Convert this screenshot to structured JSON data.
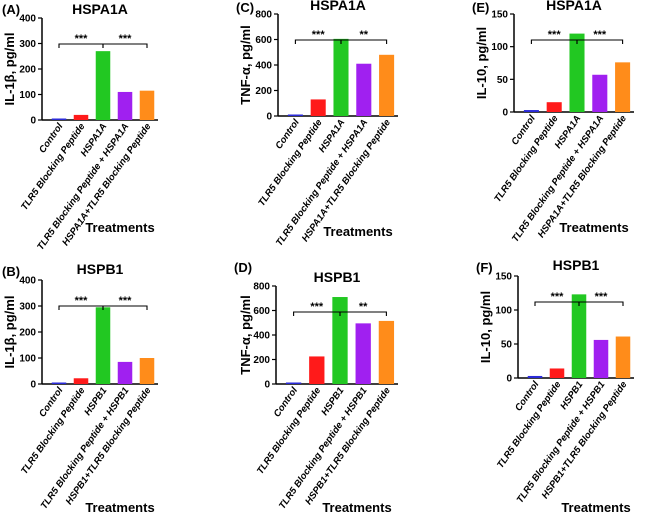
{
  "chart_data": [
    {
      "type": "bar",
      "panel": "(A)",
      "title": "HSPA1A",
      "ylabel": "IL-1β, pg/ml",
      "xlabel": "Treatments",
      "ylim": [
        0,
        400
      ],
      "yticks": [
        0,
        100,
        200,
        300,
        400
      ],
      "categories": [
        "Control",
        "TLR5 Blocking Peptide",
        "HSPA1A",
        "TLR5 Blocking Peptide + HSPA1A",
        "HSPA1A+TLR5 Blocking Peptide"
      ],
      "values": [
        2,
        20,
        270,
        110,
        115
      ],
      "colors": [
        "#2a2ad8",
        "#ff1a1a",
        "#22c822",
        "#a020f0",
        "#ff8c1a"
      ],
      "significance": [
        {
          "from": 0,
          "to": 2,
          "label": "***"
        },
        {
          "from": 2,
          "to": 4,
          "label": "***"
        }
      ]
    },
    {
      "type": "bar",
      "panel": "(C)",
      "title": "HSPA1A",
      "ylabel": "TNF-α, pg/ml",
      "xlabel": "Treatments",
      "ylim": [
        0,
        800
      ],
      "yticks": [
        0,
        200,
        400,
        600,
        800
      ],
      "categories": [
        "Control",
        "TLR5 Blocking Peptide",
        "HSPA1A",
        "TLR5 Blocking Peptide + HSPA1A",
        "HSPA1A+TLR5 Blocking Peptide"
      ],
      "values": [
        3,
        130,
        605,
        410,
        480
      ],
      "colors": [
        "#2a2ad8",
        "#ff1a1a",
        "#22c822",
        "#a020f0",
        "#ff8c1a"
      ],
      "significance": [
        {
          "from": 0,
          "to": 2,
          "label": "***"
        },
        {
          "from": 2,
          "to": 4,
          "label": "**"
        }
      ]
    },
    {
      "type": "bar",
      "panel": "(E)",
      "title": "HSPA1A",
      "ylabel": "IL-10, pg/ml",
      "xlabel": "Treatments",
      "ylim": [
        0,
        150
      ],
      "yticks": [
        0,
        50,
        100,
        150
      ],
      "categories": [
        "Control",
        "TLR5 Blocking Peptide",
        "HSPA1A",
        "TLR5 Blocking Peptide + HSPA1A",
        "HSPA1A+TLR5 Blocking Peptide"
      ],
      "values": [
        3,
        15,
        120,
        57,
        76
      ],
      "colors": [
        "#2a2ad8",
        "#ff1a1a",
        "#22c822",
        "#a020f0",
        "#ff8c1a"
      ],
      "significance": [
        {
          "from": 0,
          "to": 2,
          "label": "***"
        },
        {
          "from": 2,
          "to": 4,
          "label": "***"
        }
      ]
    },
    {
      "type": "bar",
      "panel": "(B)",
      "title": "HSPB1",
      "ylabel": "IL-1β, pg/ml",
      "xlabel": "Treatments",
      "ylim": [
        0,
        400
      ],
      "yticks": [
        0,
        100,
        200,
        300,
        400
      ],
      "categories": [
        "Control",
        "TLR5 Blocking Peptide",
        "HSPB1",
        "TLR5 Blocking Peptide + HSPB1",
        "HSPB1+TLR5 Blocking Peptide"
      ],
      "values": [
        3,
        22,
        295,
        85,
        100
      ],
      "colors": [
        "#2a2ad8",
        "#ff1a1a",
        "#22c822",
        "#a020f0",
        "#ff8c1a"
      ],
      "significance": [
        {
          "from": 0,
          "to": 2,
          "label": "***"
        },
        {
          "from": 2,
          "to": 4,
          "label": "***"
        }
      ]
    },
    {
      "type": "bar",
      "panel": "(D)",
      "title": "HSPB1",
      "ylabel": "TNF-α, pg/ml",
      "xlabel": "Treatments",
      "ylim": [
        0,
        800
      ],
      "yticks": [
        0,
        200,
        400,
        600,
        800
      ],
      "categories": [
        "Control",
        "TLR5 Blocking Peptide",
        "HSPB1",
        "TLR5 Blocking Peptide + HSPB1",
        "HSPB1+TLR5 Blocking Peptide"
      ],
      "values": [
        3,
        225,
        710,
        495,
        515
      ],
      "colors": [
        "#2a2ad8",
        "#ff1a1a",
        "#22c822",
        "#a020f0",
        "#ff8c1a"
      ],
      "significance": [
        {
          "from": 0,
          "to": 2,
          "label": "***"
        },
        {
          "from": 2,
          "to": 4,
          "label": "**"
        }
      ]
    },
    {
      "type": "bar",
      "panel": "(F)",
      "title": "HSPB1",
      "ylabel": "IL-10, pg/ml",
      "xlabel": "Treatments",
      "ylim": [
        0,
        150
      ],
      "yticks": [
        0,
        50,
        100,
        150
      ],
      "categories": [
        "Control",
        "TLR5 Blocking Peptide",
        "HSPB1",
        "TLR5 Blocking Peptide + HSPB1",
        "HSPB1+TLR5 Blocking Peptide"
      ],
      "values": [
        3,
        14,
        123,
        56,
        61
      ],
      "colors": [
        "#2a2ad8",
        "#ff1a1a",
        "#22c822",
        "#a020f0",
        "#ff8c1a"
      ],
      "significance": [
        {
          "from": 0,
          "to": 2,
          "label": "***"
        },
        {
          "from": 2,
          "to": 4,
          "label": "***"
        }
      ]
    }
  ]
}
